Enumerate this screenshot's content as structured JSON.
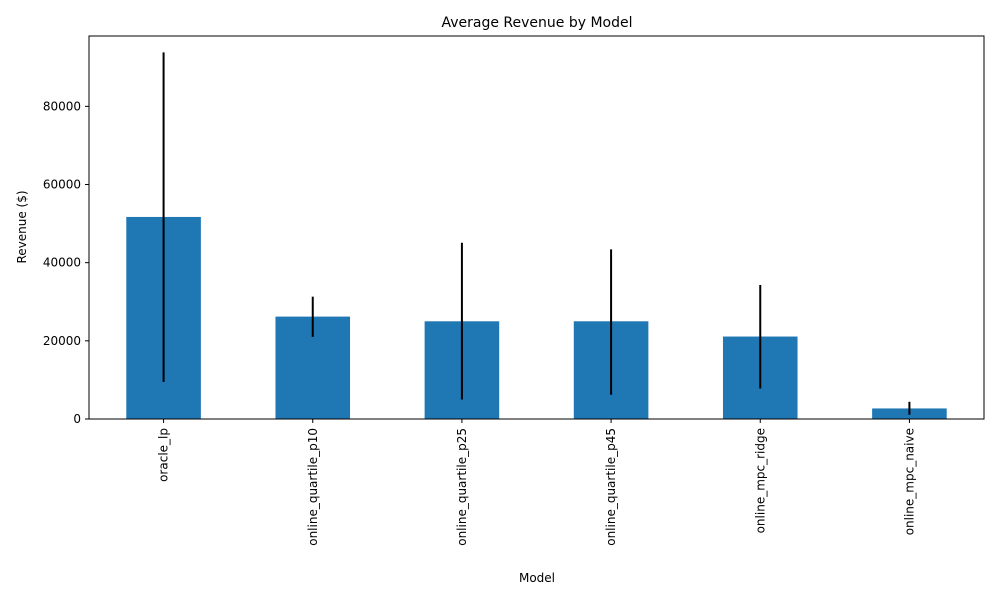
{
  "chart_data": {
    "type": "bar",
    "title": "Average Revenue by Model",
    "xlabel": "Model",
    "ylabel": "Revenue ($)",
    "categories": [
      "oracle_lp",
      "online_quartile_p10",
      "online_quartile_p25",
      "online_quartile_p45",
      "online_mpc_ridge",
      "online_mpc_naive"
    ],
    "values": [
      51700,
      26200,
      25000,
      25000,
      21100,
      2700
    ],
    "error_bars": {
      "lower": [
        9500,
        21000,
        5000,
        6200,
        7800,
        1100
      ],
      "upper": [
        93800,
        31300,
        45100,
        43400,
        34300,
        4400
      ]
    },
    "yticks": [
      0,
      20000,
      40000,
      60000,
      80000
    ],
    "ylim": [
      0,
      98000
    ],
    "grid": false,
    "legend": "none",
    "colors": {
      "bar": "#1f77b4",
      "error_bar": "#000000",
      "axes": "#000000"
    }
  }
}
